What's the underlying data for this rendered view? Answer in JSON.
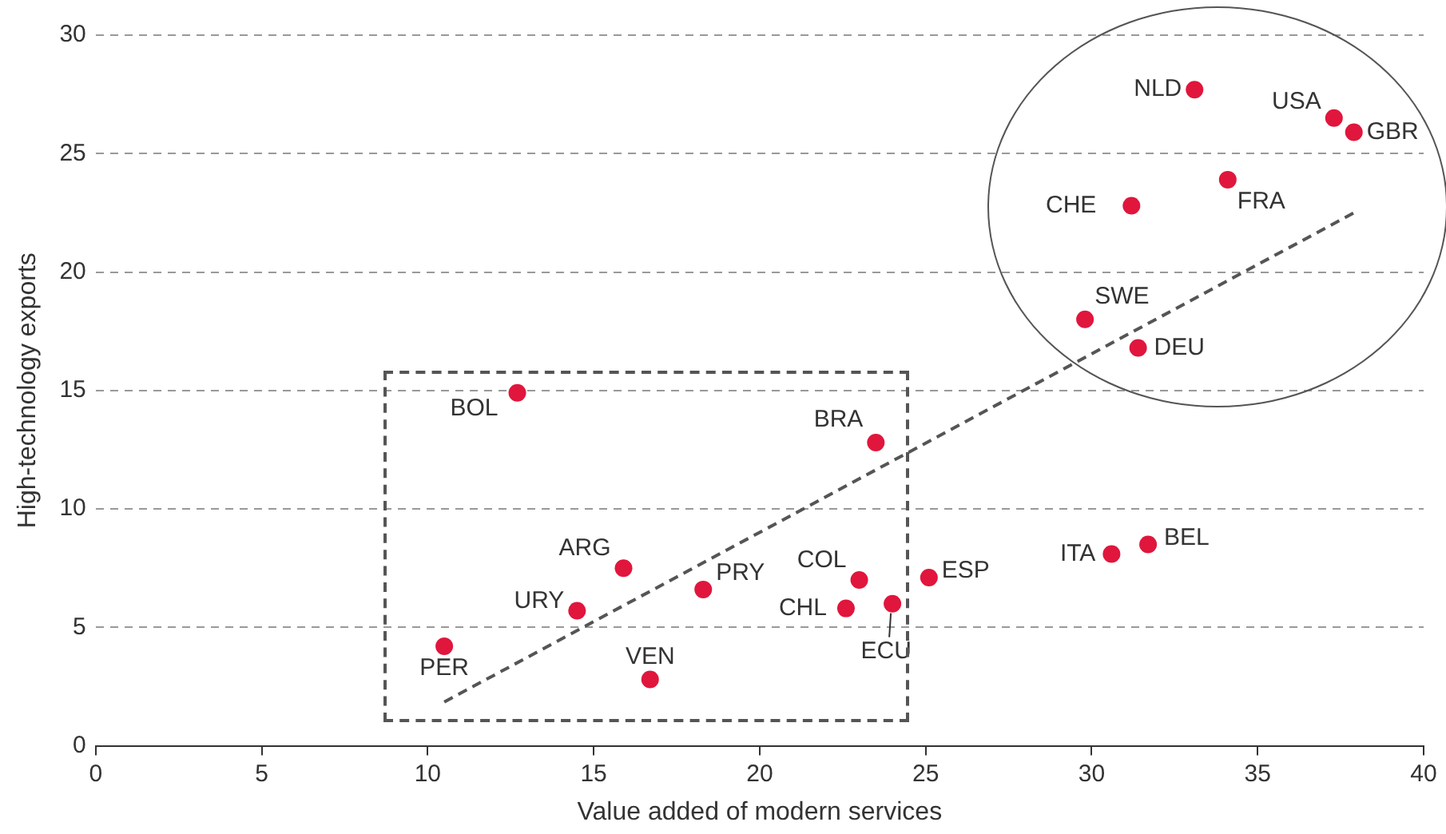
{
  "chart_data": {
    "type": "scatter",
    "xlabel": "Value added of modern services",
    "ylabel": "High-technology exports",
    "xlim": [
      0,
      40
    ],
    "xticks": [
      0,
      5,
      10,
      15,
      20,
      25,
      30,
      35,
      40
    ],
    "ylim": [
      0,
      30
    ],
    "yticks": [
      0,
      5,
      10,
      15,
      20,
      25,
      30
    ],
    "grid": "y",
    "series": [
      {
        "marker": "circle",
        "color": "#e0163d",
        "x": [
          33.1,
          37.3,
          37.9,
          31.2,
          34.1,
          29.8,
          31.4,
          12.7,
          23.5,
          15.9,
          14.5,
          18.3,
          23.0,
          22.6,
          24.0,
          25.1,
          10.5,
          16.7,
          30.6,
          31.7
        ],
        "values": [
          27.7,
          26.5,
          25.9,
          22.8,
          23.9,
          18.0,
          16.8,
          14.9,
          12.8,
          7.5,
          5.7,
          6.6,
          7.0,
          5.8,
          6.0,
          7.1,
          4.2,
          2.8,
          8.1,
          8.5
        ]
      },
      {
        "type": "line",
        "color": "#555555",
        "line_style": "dashed",
        "x": [
          10.5,
          37.9
        ],
        "values": [
          1.85,
          22.5
        ]
      }
    ],
    "annotations": [
      {
        "text": "NLD",
        "x": 33.1,
        "y": 27.7
      },
      {
        "text": "USA",
        "x": 37.3,
        "y": 26.5
      },
      {
        "text": "GBR",
        "x": 37.9,
        "y": 25.9
      },
      {
        "text": "CHE",
        "x": 31.2,
        "y": 22.8
      },
      {
        "text": "FRA",
        "x": 34.1,
        "y": 23.9
      },
      {
        "text": "SWE",
        "x": 29.8,
        "y": 18.0
      },
      {
        "text": "DEU",
        "x": 31.4,
        "y": 16.8
      },
      {
        "text": "BOL",
        "x": 12.7,
        "y": 14.9
      },
      {
        "text": "BRA",
        "x": 23.5,
        "y": 12.8
      },
      {
        "text": "ARG",
        "x": 15.9,
        "y": 7.5
      },
      {
        "text": "URY",
        "x": 14.5,
        "y": 5.7
      },
      {
        "text": "PRY",
        "x": 18.3,
        "y": 6.6
      },
      {
        "text": "COL",
        "x": 23.0,
        "y": 7.0
      },
      {
        "text": "CHL",
        "x": 22.6,
        "y": 5.8
      },
      {
        "text": "ECU",
        "x": 24.0,
        "y": 6.0
      },
      {
        "text": "ESP",
        "x": 25.1,
        "y": 7.1
      },
      {
        "text": "PER",
        "x": 10.5,
        "y": 4.2
      },
      {
        "text": "VEN",
        "x": 16.7,
        "y": 2.8
      },
      {
        "text": "ITA",
        "x": 30.6,
        "y": 8.1
      },
      {
        "text": "BEL",
        "x": 31.7,
        "y": 8.5
      }
    ]
  }
}
